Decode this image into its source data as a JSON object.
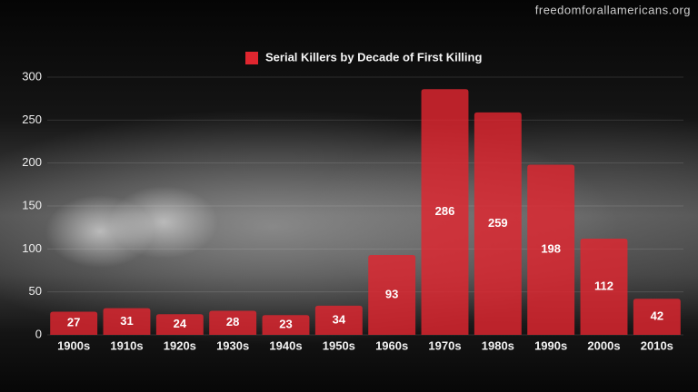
{
  "watermark": "freedomforallamericans.org",
  "chart_data": {
    "type": "bar",
    "categories": [
      "1900s",
      "1910s",
      "1920s",
      "1930s",
      "1940s",
      "1950s",
      "1960s",
      "1970s",
      "1980s",
      "1990s",
      "2000s",
      "2010s"
    ],
    "series": [
      {
        "name": "Serial Killers by Decade of First Killing",
        "color": "#e0262f",
        "values": [
          27,
          31,
          24,
          28,
          23,
          34,
          93,
          286,
          259,
          198,
          112,
          42
        ]
      }
    ],
    "ylim": [
      0,
      300
    ],
    "yticks": [
      0,
      50,
      100,
      150,
      200,
      250,
      300
    ],
    "grid": true,
    "legend": "top"
  }
}
